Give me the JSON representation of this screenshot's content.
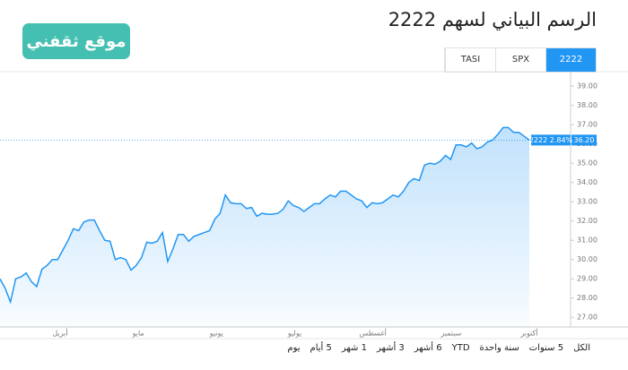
{
  "header": {
    "title": "الرسم البياني لسهم 2222",
    "logo": "موقع ثقفني"
  },
  "tabs": [
    "TASI",
    "SPX",
    "2222"
  ],
  "active_tab": 2,
  "chart_data": {
    "type": "area",
    "color": "#2196f3",
    "series": [
      {
        "name": "2222",
        "color": "#2196f3",
        "values": [
          29.0,
          28.5,
          27.8,
          29.0,
          29.1,
          29.3,
          28.85,
          28.6,
          29.5,
          29.7,
          30.0,
          30.0,
          30.5,
          31.0,
          31.6,
          31.5,
          31.95,
          32.05,
          32.05,
          31.5,
          31.0,
          30.95,
          30.0,
          30.1,
          30.0,
          29.45,
          29.7,
          30.1,
          30.9,
          30.85,
          30.95,
          31.4,
          29.9,
          30.55,
          31.3,
          31.3,
          30.95,
          31.2,
          31.3,
          31.4,
          31.5,
          32.1,
          32.4,
          33.35,
          32.95,
          32.9,
          32.9,
          32.65,
          32.7,
          32.25,
          32.4,
          32.35,
          32.35,
          32.4,
          32.6,
          33.05,
          32.8,
          32.7,
          32.5,
          32.7,
          32.9,
          32.9,
          33.15,
          33.35,
          33.25,
          33.55,
          33.55,
          33.35,
          33.15,
          33.05,
          32.7,
          32.95,
          32.9,
          32.95,
          33.15,
          33.35,
          33.25,
          33.55,
          34.0,
          34.2,
          34.1,
          34.9,
          35.0,
          34.95,
          35.1,
          35.4,
          35.2,
          35.95,
          35.95,
          35.85,
          36.05,
          35.75,
          35.85,
          36.1,
          36.2,
          36.5,
          36.85,
          36.85,
          36.6,
          36.6,
          36.4,
          36.2
        ]
      }
    ],
    "ylim": [
      26.5,
      39.75
    ],
    "yticks": [
      {
        "value": 27,
        "label": "27.00"
      },
      {
        "value": 28,
        "label": "28.00"
      },
      {
        "value": 29,
        "label": "29.00"
      },
      {
        "value": 30,
        "label": "30.00"
      },
      {
        "value": 31,
        "label": "31.00"
      },
      {
        "value": 32,
        "label": "32.00"
      },
      {
        "value": 33,
        "label": "33.00"
      },
      {
        "value": 34,
        "label": "34.00"
      },
      {
        "value": 35,
        "label": "35.00"
      },
      {
        "value": 36,
        "label": "36.00"
      },
      {
        "value": 37,
        "label": "37.00"
      },
      {
        "value": 38,
        "label": "38.00"
      },
      {
        "value": 39,
        "label": "39.00"
      }
    ],
    "xlabels": [
      "أبريل",
      "مايو",
      "يونيو",
      "يوليو",
      "أغسطس",
      "سبتمبر",
      "أكتوبر"
    ],
    "price_tag": {
      "text": "2222 2.84%",
      "price": {
        "value": 36.2,
        "label": "36.20"
      }
    }
  },
  "ranges": [
    "يوم",
    "5 أيام",
    "1 شهر",
    "3 أشهر",
    "6 أشهر",
    "YTD",
    "سنة واحدة",
    "5 سنوات",
    "الكل"
  ]
}
